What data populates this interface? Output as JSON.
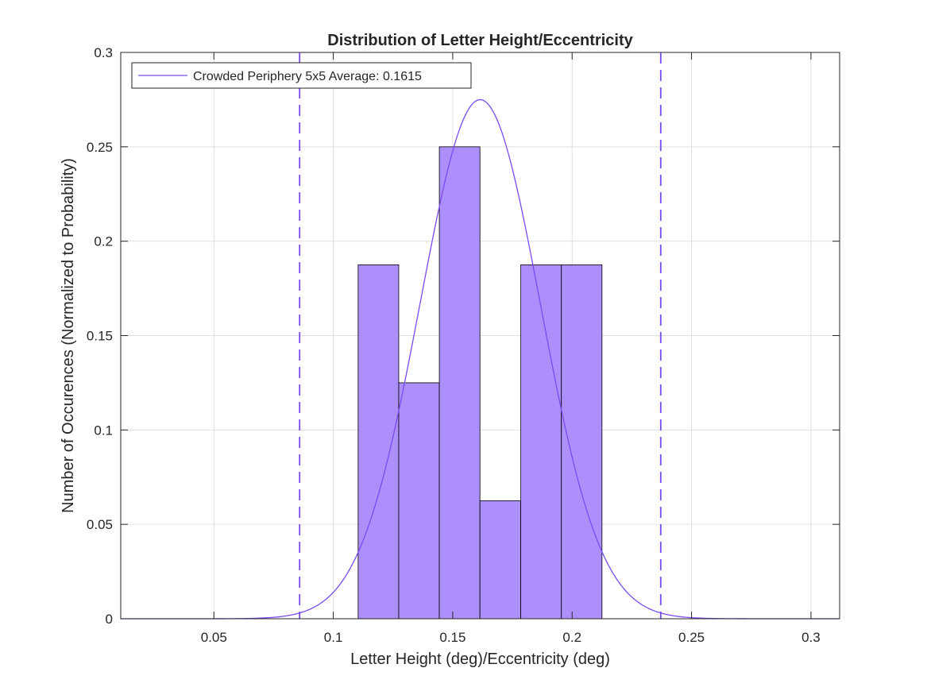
{
  "chart_data": {
    "type": "bar",
    "title": "Distribution of Letter Height/Eccentricity",
    "xlabel": "Letter Height (deg)/Eccentricity (deg)",
    "ylabel": "Number of Occurences (Normalized to Probability)",
    "xlim": [
      0.011,
      0.312
    ],
    "ylim": [
      0,
      0.3
    ],
    "xticks": [
      0.05,
      0.1,
      0.15,
      0.2,
      0.25,
      0.3
    ],
    "xtick_labels": [
      "0.05",
      "0.1",
      "0.15",
      "0.2",
      "0.25",
      "0.3"
    ],
    "yticks": [
      0,
      0.05,
      0.1,
      0.15,
      0.2,
      0.25,
      0.3
    ],
    "ytick_labels": [
      "0",
      "0.05",
      "0.1",
      "0.15",
      "0.2",
      "0.25",
      "0.3"
    ],
    "grid": true,
    "histogram": {
      "bin_edges": [
        0.1104,
        0.1274,
        0.1444,
        0.1614,
        0.1785,
        0.1955,
        0.2125
      ],
      "values": [
        0.1875,
        0.125,
        0.25,
        0.0625,
        0.1875,
        0.1875
      ],
      "color": "#AC8FFA",
      "edge_color": "#000000"
    },
    "series": [
      {
        "name": "Crowded Periphery 5x5 Average: 0.1615",
        "type": "line",
        "distribution": "normal",
        "mean": 0.1615,
        "std": 0.0252,
        "peak": 0.275,
        "color": "#7B4BF2"
      }
    ],
    "reference_lines": [
      {
        "x": 0.0859,
        "style": "dashed",
        "color": "#7B4BF2"
      },
      {
        "x": 0.2371,
        "style": "dashed",
        "color": "#7B4BF2"
      }
    ],
    "legend": {
      "placement": "top-left"
    },
    "colors": {
      "axis": "#262626",
      "grid": "#DFDFDF",
      "background": "#FFFFFF"
    }
  }
}
